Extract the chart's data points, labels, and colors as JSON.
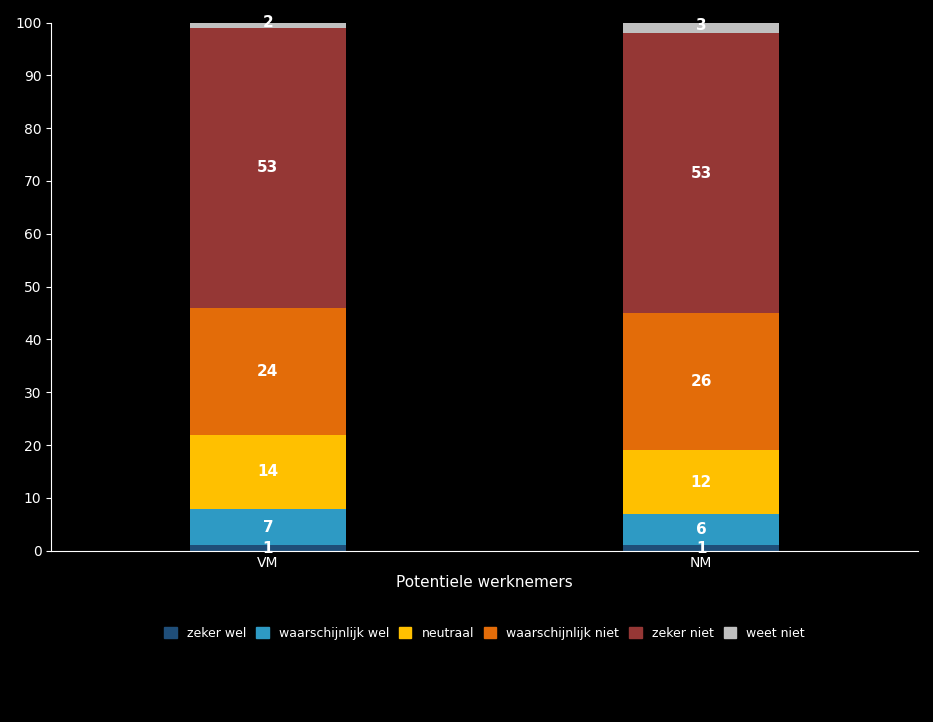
{
  "categories": [
    "VM",
    "NM"
  ],
  "series": [
    {
      "label": "zeker wel",
      "values": [
        1,
        1
      ],
      "color": "#1F4E79"
    },
    {
      "label": "waarschijnlijk wel",
      "values": [
        7,
        6
      ],
      "color": "#2E9AC4"
    },
    {
      "label": "neutraal",
      "values": [
        14,
        12
      ],
      "color": "#FFC000"
    },
    {
      "label": "waarschijnlijk niet",
      "values": [
        24,
        26
      ],
      "color": "#E36C09"
    },
    {
      "label": "zeker niet",
      "values": [
        53,
        53
      ],
      "color": "#953735"
    },
    {
      "label": "weet niet",
      "values": [
        2,
        3
      ],
      "color": "#C0C0C0"
    }
  ],
  "xlabel": "Potentiele werknemers",
  "ylabel": "",
  "ylim": [
    0,
    100
  ],
  "yticks": [
    0,
    10,
    20,
    30,
    40,
    50,
    60,
    70,
    80,
    90,
    100
  ],
  "background_color": "#000000",
  "text_color": "#FFFFFF",
  "bar_width": 0.18,
  "x_positions": [
    0.25,
    0.75
  ],
  "xlim": [
    0.0,
    1.0
  ],
  "label_fontsize": 11,
  "tick_fontsize": 10,
  "legend_fontsize": 9,
  "xlabel_fontsize": 11
}
